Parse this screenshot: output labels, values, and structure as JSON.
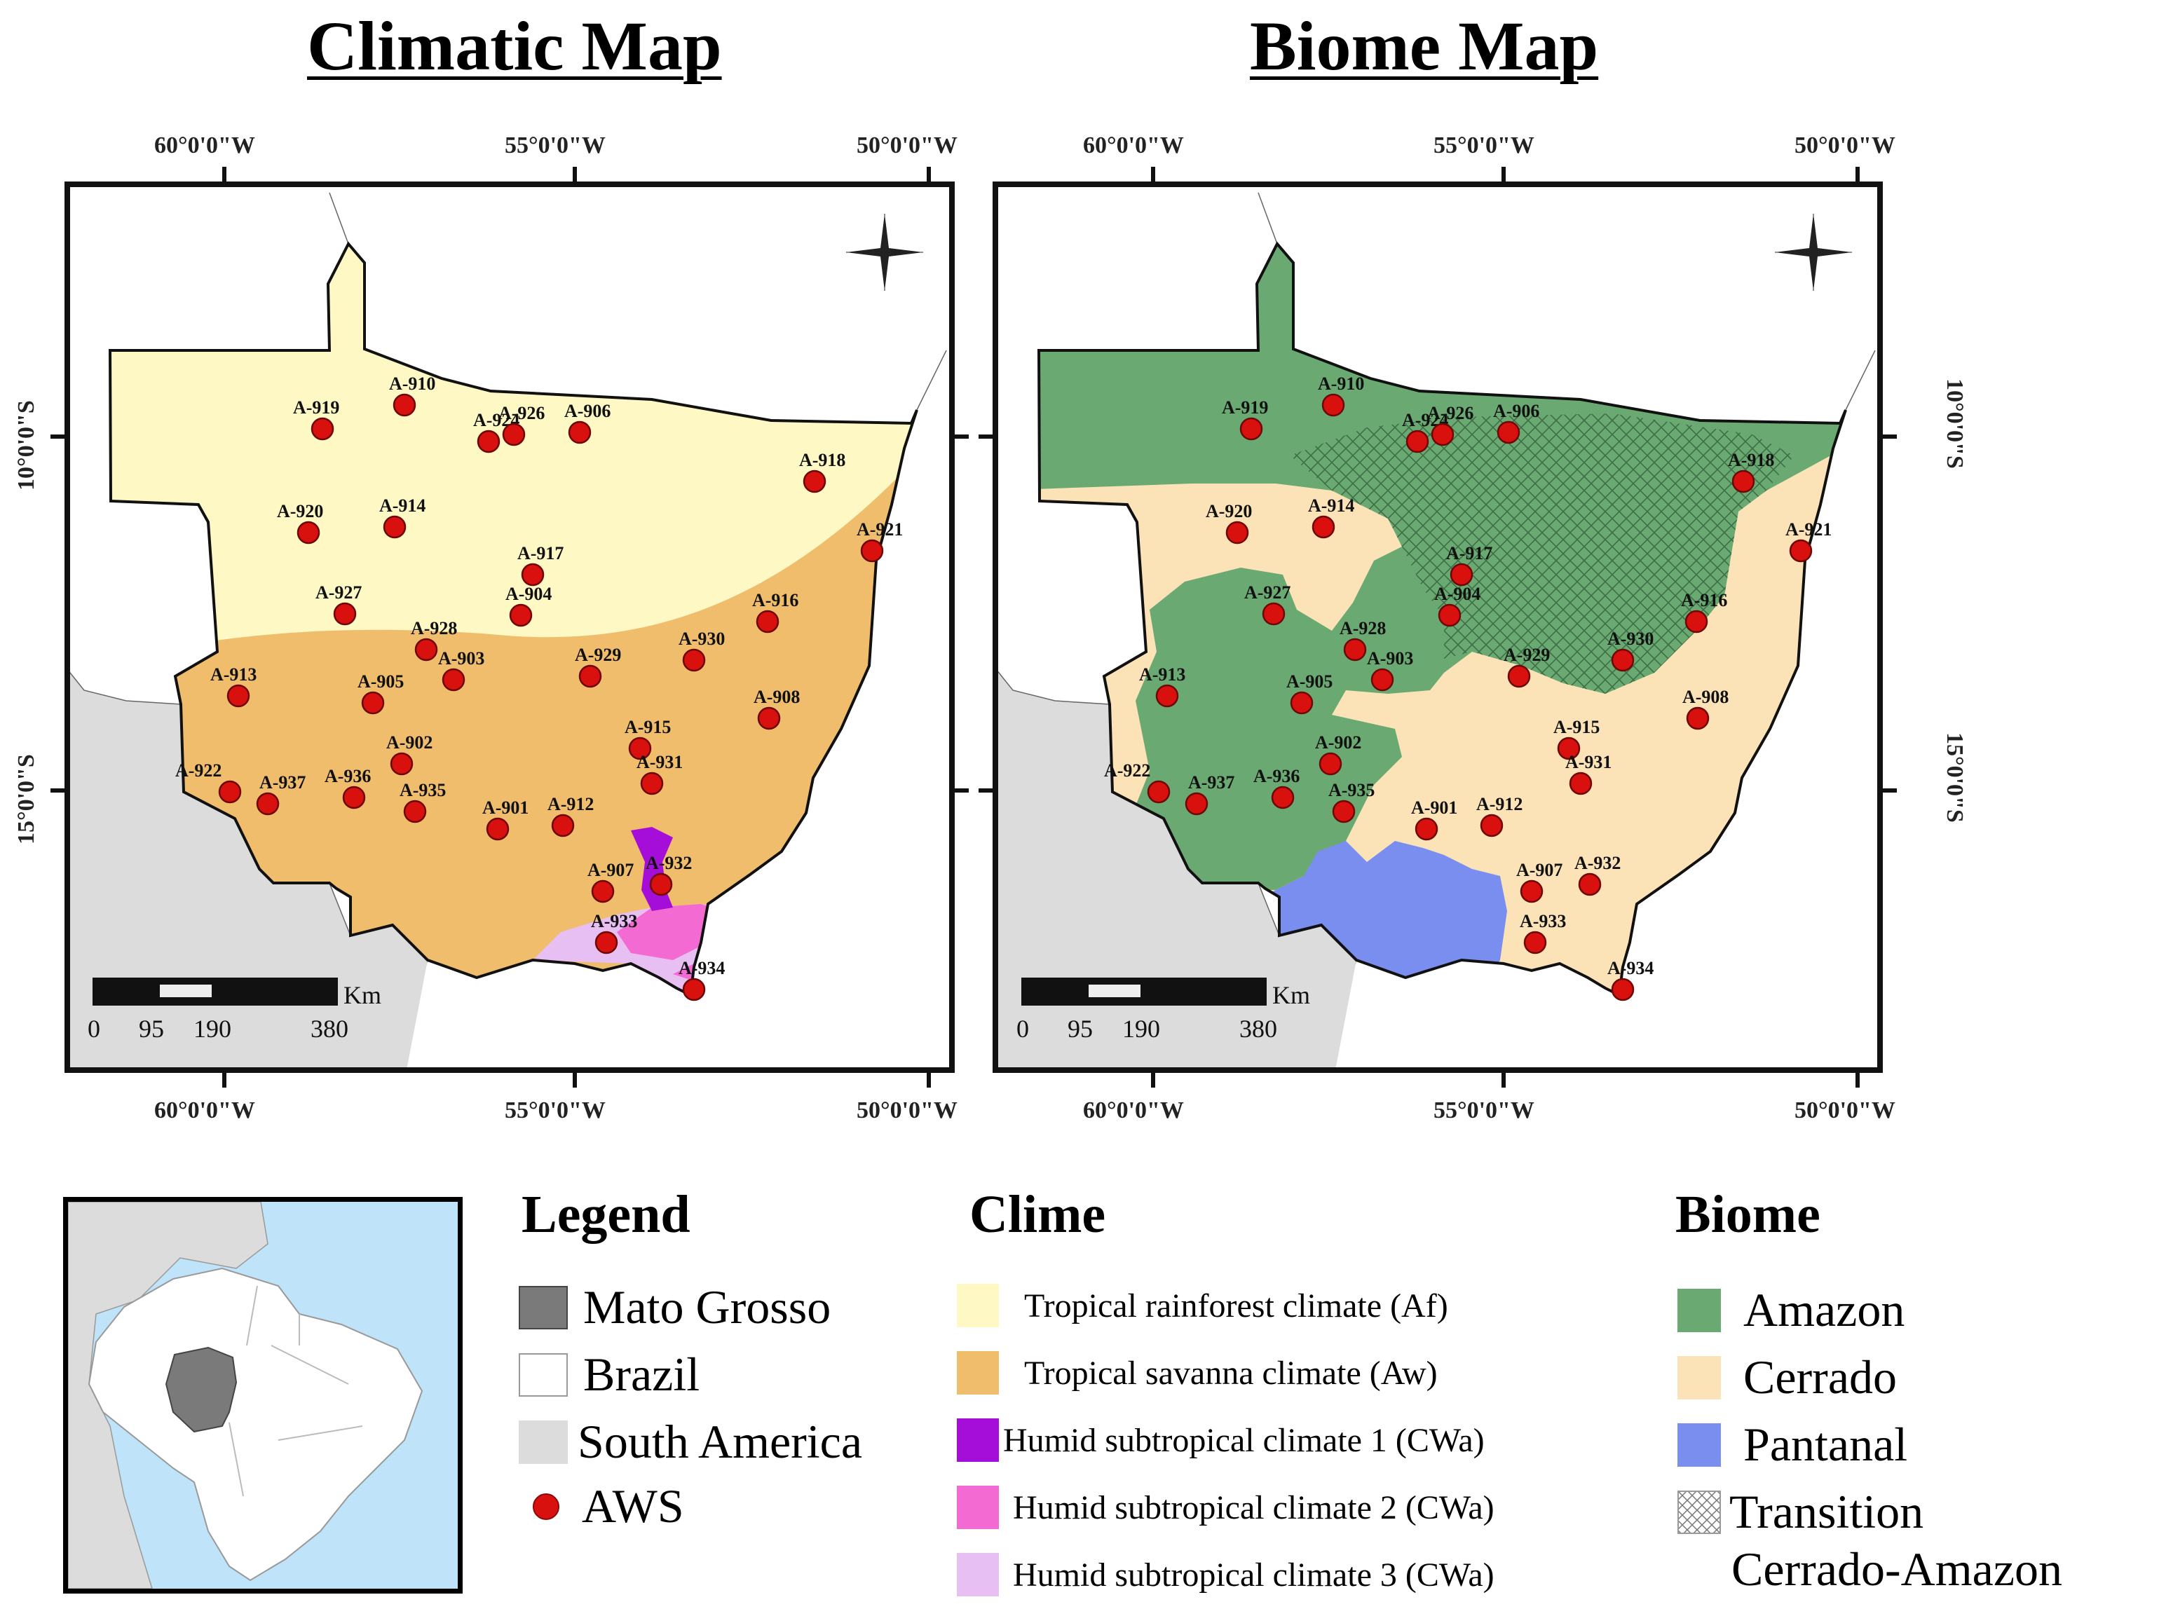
{
  "titles": {
    "climate": "Climatic Map",
    "biome": "Biome Map"
  },
  "grid_labels": {
    "lon": [
      "60°0'0\"W",
      "55°0'0\"W",
      "50°0'0\"W"
    ],
    "lat": [
      "10°0'0\"S",
      "15°0'0\"S"
    ]
  },
  "scale_bar": {
    "unit": "Km",
    "ticks": [
      "0",
      "95",
      "190",
      "380"
    ]
  },
  "stations": [
    {
      "id": "A-919"
    },
    {
      "id": "A-910"
    },
    {
      "id": "A-924"
    },
    {
      "id": "A-926"
    },
    {
      "id": "A-906"
    },
    {
      "id": "A-918"
    },
    {
      "id": "A-920"
    },
    {
      "id": "A-914"
    },
    {
      "id": "A-921"
    },
    {
      "id": "A-917"
    },
    {
      "id": "A-927"
    },
    {
      "id": "A-904"
    },
    {
      "id": "A-916"
    },
    {
      "id": "A-928"
    },
    {
      "id": "A-903"
    },
    {
      "id": "A-929"
    },
    {
      "id": "A-930"
    },
    {
      "id": "A-913"
    },
    {
      "id": "A-905"
    },
    {
      "id": "A-908"
    },
    {
      "id": "A-915"
    },
    {
      "id": "A-902"
    },
    {
      "id": "A-931"
    },
    {
      "id": "A-922"
    },
    {
      "id": "A-937"
    },
    {
      "id": "A-936"
    },
    {
      "id": "A-935"
    },
    {
      "id": "A-901"
    },
    {
      "id": "A-912"
    },
    {
      "id": "A-907"
    },
    {
      "id": "A-932"
    },
    {
      "id": "A-933"
    },
    {
      "id": "A-934"
    }
  ],
  "legend": {
    "heading": "Legend",
    "items": [
      {
        "label": "Mato Grosso",
        "color": "#7a7a7a"
      },
      {
        "label": "Brazil",
        "color": "#ffffff"
      },
      {
        "label": "South America",
        "color": "#dcdcdc"
      },
      {
        "label": "AWS",
        "color": "#d8110f"
      }
    ]
  },
  "clime": {
    "heading": "Clime",
    "items": [
      {
        "label": "Tropical rainforest climate (Af)",
        "color": "#fdf8c4"
      },
      {
        "label": "Tropical savanna climate (Aw)",
        "color": "#f0bd6c"
      },
      {
        "label": "Humid subtropical climate 1 (CWa)",
        "color": "#a50ed8"
      },
      {
        "label": "Humid subtropical climate 2 (CWa)",
        "color": "#f26ad2"
      },
      {
        "label": "Humid subtropical climate 3 (CWa)",
        "color": "#e7bff2"
      }
    ]
  },
  "biome": {
    "heading": "Biome",
    "items": [
      {
        "label": "Amazon",
        "color": "#6aaa72"
      },
      {
        "label": "Cerrado",
        "color": "#fbe3b7"
      },
      {
        "label": "Pantanal",
        "color": "#7a8ef0"
      },
      {
        "label": "Transition",
        "color": "hatch"
      }
    ],
    "transition_sub": "Cerrado-Amazon"
  }
}
